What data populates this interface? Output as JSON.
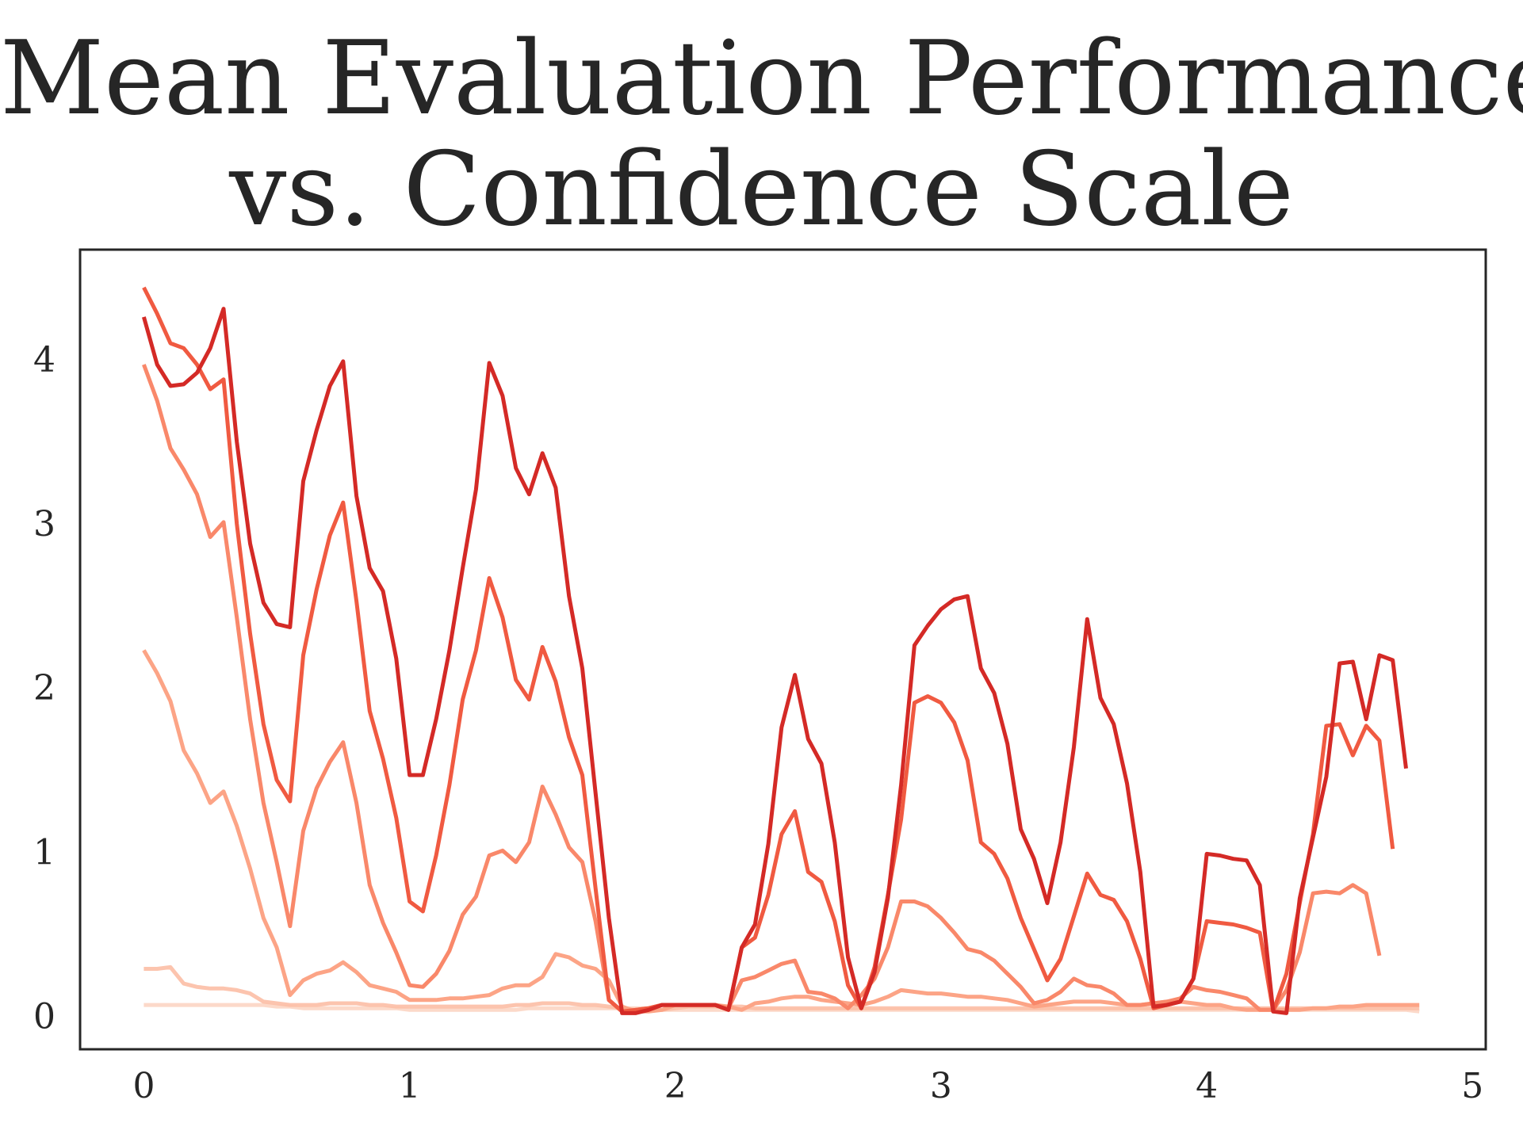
{
  "chart_data": {
    "type": "line",
    "title_lines": [
      "Mean Evaluation Performance",
      "vs. Confidence Scale"
    ],
    "xlabel": "",
    "ylabel": "",
    "xlim": [
      -0.24,
      5.05
    ],
    "ylim": [
      -0.2,
      4.67
    ],
    "xticks": [
      "0",
      "1",
      "2",
      "3",
      "4",
      "5"
    ],
    "yticks": [
      "0",
      "1",
      "2",
      "3",
      "4"
    ],
    "grid": false,
    "x_step": 0.05,
    "x_start": 0,
    "series": [
      {
        "color": "#fcd2bf",
        "opacity": 0.85,
        "values": [
          0.07,
          0.07,
          0.07,
          0.07,
          0.07,
          0.07,
          0.07,
          0.07,
          0.07,
          0.07,
          0.06,
          0.06,
          0.05,
          0.05,
          0.05,
          0.05,
          0.05,
          0.05,
          0.05,
          0.05,
          0.04,
          0.04,
          0.04,
          0.04,
          0.04,
          0.04,
          0.04,
          0.04,
          0.04,
          0.05,
          0.05,
          0.05,
          0.05,
          0.05,
          0.05,
          0.05,
          0.05,
          0.05,
          0.05,
          0.04,
          0.04,
          0.04,
          0.04,
          0.04,
          0.04,
          0.04,
          0.04,
          0.04,
          0.04,
          0.04,
          0.04,
          0.04,
          0.04,
          0.04,
          0.04,
          0.04,
          0.04,
          0.04,
          0.04,
          0.04,
          0.04,
          0.04,
          0.04,
          0.04,
          0.04,
          0.04,
          0.04,
          0.04,
          0.04,
          0.04,
          0.04,
          0.04,
          0.04,
          0.04,
          0.04,
          0.04,
          0.04,
          0.04,
          0.04,
          0.04,
          0.04,
          0.04,
          0.04,
          0.04,
          0.04,
          0.04,
          0.04,
          0.04,
          0.04,
          0.04,
          0.04,
          0.04,
          0.04,
          0.04,
          0.04,
          0.04,
          0.03
        ]
      },
      {
        "color": "#fcbea5",
        "opacity": 0.9,
        "values": [
          0.29,
          0.29,
          0.3,
          0.2,
          0.18,
          0.17,
          0.17,
          0.16,
          0.14,
          0.09,
          0.08,
          0.07,
          0.07,
          0.07,
          0.08,
          0.08,
          0.08,
          0.07,
          0.07,
          0.06,
          0.06,
          0.06,
          0.06,
          0.06,
          0.06,
          0.06,
          0.06,
          0.06,
          0.07,
          0.07,
          0.08,
          0.08,
          0.08,
          0.07,
          0.07,
          0.06,
          0.05,
          0.04,
          0.04,
          0.04,
          0.05,
          0.06,
          0.06,
          0.06,
          0.06,
          0.06,
          0.05,
          0.05,
          0.05,
          0.05,
          0.05,
          0.05,
          0.05,
          0.05,
          0.05,
          0.05,
          0.05,
          0.05,
          0.05,
          0.05,
          0.05,
          0.05,
          0.05,
          0.05,
          0.05,
          0.05,
          0.05,
          0.05,
          0.05,
          0.05,
          0.05,
          0.05,
          0.05,
          0.05,
          0.05,
          0.05,
          0.05,
          0.05,
          0.05,
          0.05,
          0.05,
          0.05,
          0.05,
          0.05,
          0.05,
          0.05,
          0.05,
          0.05,
          0.05,
          0.05,
          0.05,
          0.05,
          0.05,
          0.05,
          0.05,
          0.05,
          0.05
        ]
      },
      {
        "color": "#fca486",
        "opacity": 1,
        "values": [
          2.23,
          2.09,
          1.92,
          1.62,
          1.48,
          1.3,
          1.37,
          1.16,
          0.9,
          0.6,
          0.42,
          0.13,
          0.22,
          0.26,
          0.28,
          0.33,
          0.27,
          0.19,
          0.17,
          0.15,
          0.1,
          0.1,
          0.1,
          0.11,
          0.11,
          0.12,
          0.13,
          0.17,
          0.19,
          0.19,
          0.24,
          0.38,
          0.36,
          0.31,
          0.29,
          0.22,
          0.06,
          0.03,
          0.03,
          0.04,
          0.07,
          0.07,
          0.07,
          0.07,
          0.06,
          0.04,
          0.08,
          0.09,
          0.11,
          0.12,
          0.12,
          0.1,
          0.09,
          0.08,
          0.07,
          0.09,
          0.12,
          0.16,
          0.15,
          0.14,
          0.14,
          0.13,
          0.12,
          0.12,
          0.11,
          0.1,
          0.08,
          0.06,
          0.07,
          0.08,
          0.09,
          0.09,
          0.09,
          0.08,
          0.07,
          0.07,
          0.08,
          0.09,
          0.09,
          0.08,
          0.07,
          0.07,
          0.05,
          0.04,
          0.04,
          0.04,
          0.04,
          0.04,
          0.05,
          0.05,
          0.06,
          0.06,
          0.07,
          0.07,
          0.07,
          0.07,
          0.07
        ]
      },
      {
        "color": "#f9886a",
        "opacity": 1,
        "values": [
          3.97,
          3.75,
          3.46,
          3.33,
          3.18,
          2.92,
          3.01,
          2.43,
          1.81,
          1.3,
          0.94,
          0.55,
          1.13,
          1.39,
          1.55,
          1.67,
          1.3,
          0.8,
          0.57,
          0.39,
          0.19,
          0.18,
          0.26,
          0.4,
          0.62,
          0.73,
          0.98,
          1.01,
          0.94,
          1.06,
          1.4,
          1.23,
          1.03,
          0.94,
          0.58,
          0.1,
          0.03,
          0.04,
          0.05,
          0.07,
          0.07,
          0.07,
          0.07,
          0.07,
          0.05,
          0.22,
          0.24,
          0.28,
          0.32,
          0.34,
          0.15,
          0.14,
          0.11,
          0.05,
          0.13,
          0.23,
          0.42,
          0.7,
          0.7,
          0.67,
          0.6,
          0.51,
          0.41,
          0.39,
          0.34,
          0.26,
          0.18,
          0.08,
          0.1,
          0.15,
          0.23,
          0.19,
          0.18,
          0.14,
          0.07,
          0.07,
          0.08,
          0.09,
          0.11,
          0.18,
          0.16,
          0.15,
          0.13,
          0.11,
          0.04,
          0.04,
          0.16,
          0.39,
          0.75,
          0.76,
          0.75,
          0.8,
          0.75,
          0.37
        ]
      },
      {
        "color": "#f05a41",
        "opacity": 1,
        "values": [
          4.44,
          4.28,
          4.1,
          4.07,
          3.97,
          3.82,
          3.88,
          3.0,
          2.33,
          1.78,
          1.44,
          1.31,
          2.2,
          2.6,
          2.93,
          3.13,
          2.53,
          1.86,
          1.57,
          1.21,
          0.7,
          0.64,
          0.98,
          1.41,
          1.93,
          2.23,
          2.67,
          2.43,
          2.05,
          1.93,
          2.25,
          2.04,
          1.7,
          1.47,
          0.78,
          0.1,
          0.03,
          0.04,
          0.05,
          0.07,
          0.07,
          0.07,
          0.07,
          0.07,
          0.04,
          0.42,
          0.48,
          0.74,
          1.11,
          1.25,
          0.88,
          0.82,
          0.58,
          0.19,
          0.05,
          0.3,
          0.74,
          1.2,
          1.91,
          1.95,
          1.91,
          1.79,
          1.56,
          1.06,
          0.99,
          0.84,
          0.6,
          0.41,
          0.22,
          0.35,
          0.61,
          0.87,
          0.74,
          0.71,
          0.58,
          0.35,
          0.05,
          0.07,
          0.09,
          0.23,
          0.58,
          0.57,
          0.56,
          0.54,
          0.51,
          0.03,
          0.26,
          0.69,
          1.11,
          1.77,
          1.78,
          1.59,
          1.77,
          1.68,
          1.02
        ]
      },
      {
        "color": "#d42a26",
        "opacity": 1,
        "values": [
          4.26,
          3.97,
          3.84,
          3.85,
          3.92,
          4.07,
          4.31,
          3.5,
          2.88,
          2.52,
          2.39,
          2.37,
          3.26,
          3.57,
          3.84,
          3.99,
          3.17,
          2.73,
          2.59,
          2.18,
          1.47,
          1.47,
          1.81,
          2.23,
          2.73,
          3.21,
          3.98,
          3.78,
          3.34,
          3.18,
          3.43,
          3.22,
          2.56,
          2.12,
          1.36,
          0.6,
          0.02,
          0.02,
          0.04,
          0.07,
          0.07,
          0.07,
          0.07,
          0.07,
          0.04,
          0.42,
          0.56,
          1.05,
          1.76,
          2.08,
          1.69,
          1.54,
          1.06,
          0.36,
          0.05,
          0.27,
          0.72,
          1.41,
          2.26,
          2.38,
          2.48,
          2.54,
          2.56,
          2.12,
          1.97,
          1.66,
          1.14,
          0.96,
          0.69,
          1.06,
          1.64,
          2.42,
          1.94,
          1.78,
          1.42,
          0.88,
          0.06,
          0.07,
          0.09,
          0.23,
          0.99,
          0.98,
          0.96,
          0.95,
          0.8,
          0.03,
          0.02,
          0.72,
          1.09,
          1.46,
          2.15,
          2.16,
          1.81,
          2.2,
          2.17,
          1.51
        ]
      }
    ]
  }
}
